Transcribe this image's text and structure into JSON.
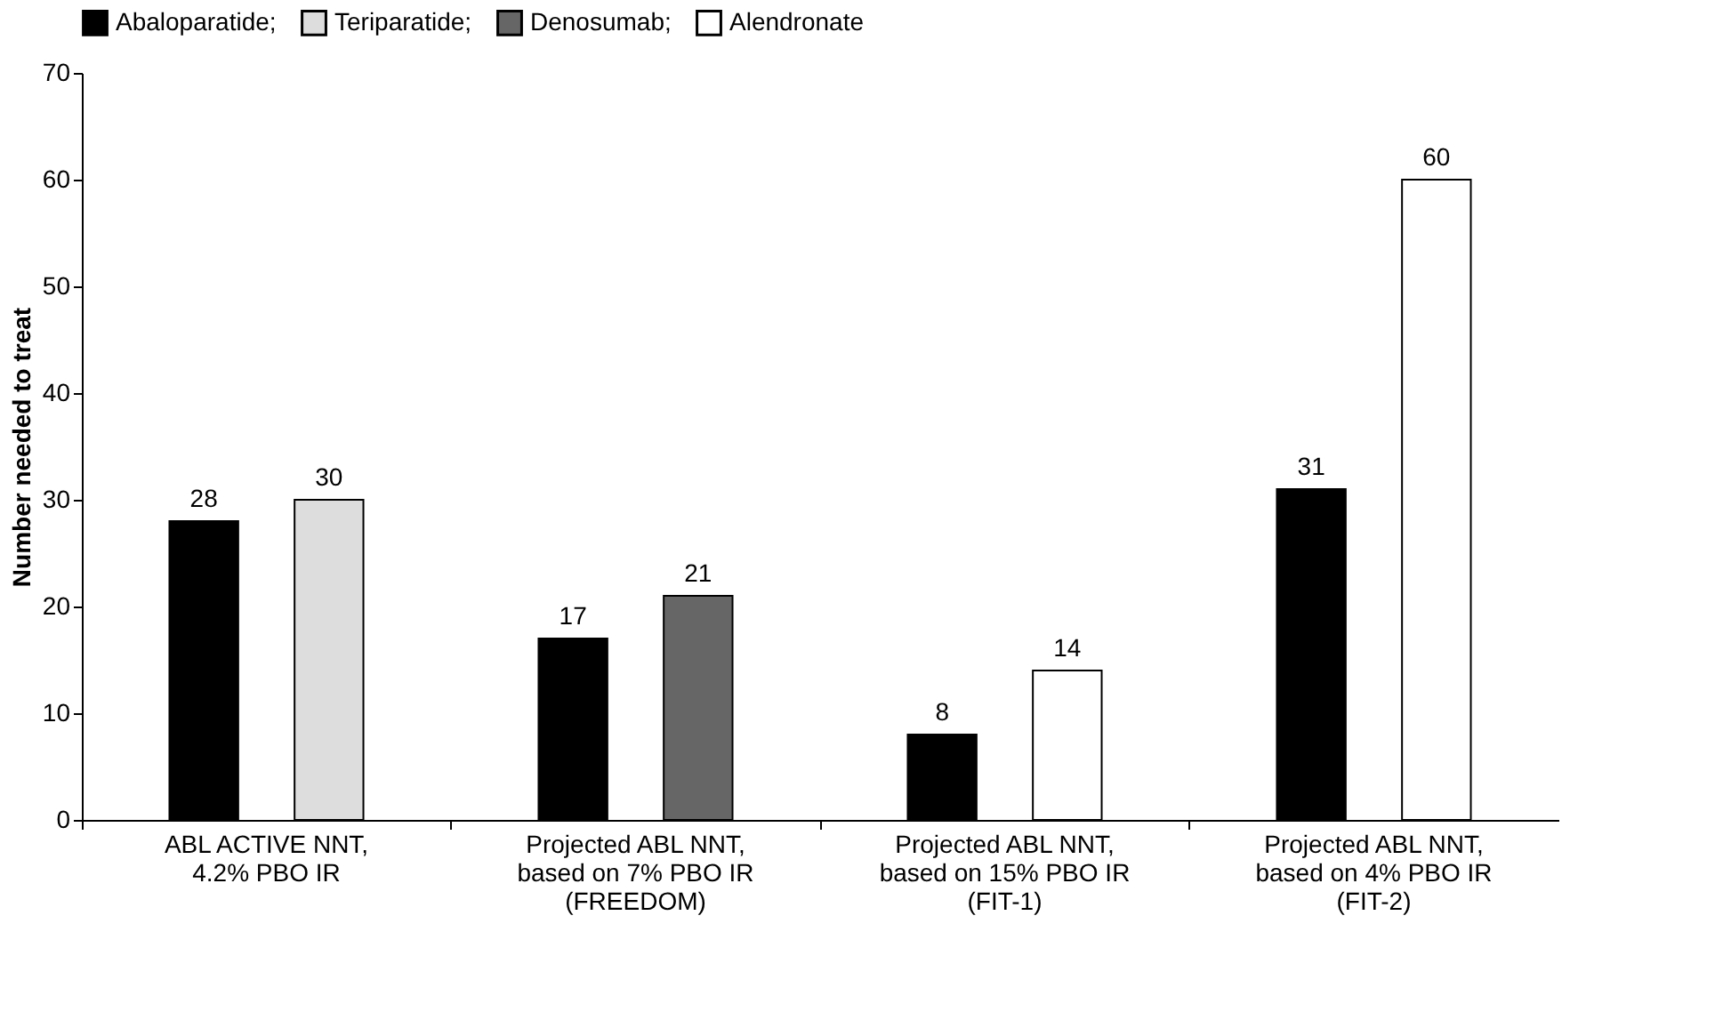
{
  "chart_data": {
    "type": "bar",
    "ylabel": "Number needed to treat",
    "categories": [
      "ABL ACTIVE NNT,\n4.2% PBO IR",
      "Projected ABL NNT,\nbased on 7% PBO IR\n(FREEDOM)",
      "Projected ABL NNT,\nbased on 15% PBO IR\n(FIT-1)",
      "Projected ABL NNT,\nbased on 4% PBO IR\n(FIT-2)"
    ],
    "series": [
      {
        "name": "Abaloparatide;",
        "color": "#000000",
        "values": [
          28,
          17,
          8,
          31
        ]
      },
      {
        "name": "Teriparatide;",
        "color": "#dddddd",
        "values": [
          30,
          null,
          null,
          null
        ]
      },
      {
        "name": "Denosumab;",
        "color": "#666666",
        "values": [
          null,
          21,
          null,
          null
        ]
      },
      {
        "name": "Alendronate",
        "color": "#ffffff",
        "values": [
          null,
          null,
          14,
          60
        ]
      }
    ],
    "ylim": [
      0,
      70
    ],
    "yticks": [
      0,
      10,
      20,
      30,
      40,
      50,
      60,
      70
    ],
    "grid": false,
    "legend": "top",
    "data_labels": true
  }
}
